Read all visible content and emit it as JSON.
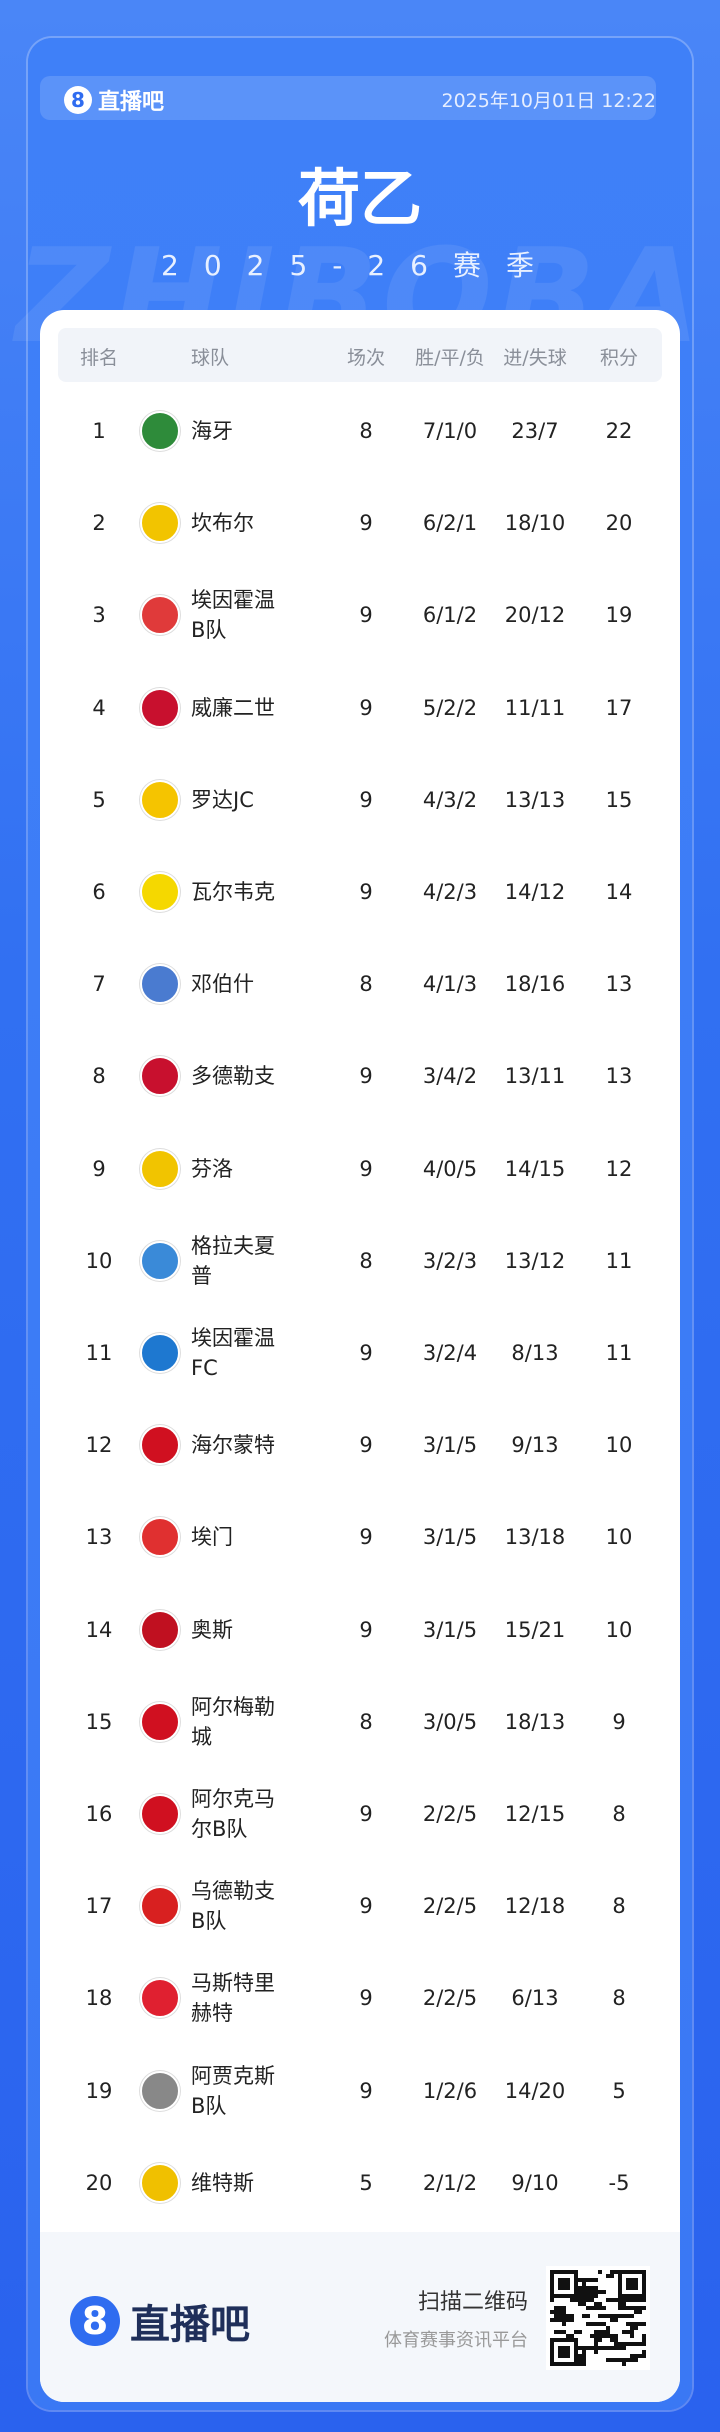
{
  "header": {
    "brand": "直播吧",
    "datetime": "2025年10月01日 12:22"
  },
  "title": "荷乙",
  "season": "2025-26赛季",
  "watermark": "ZHIBOBA",
  "table": {
    "columns": [
      "排名",
      "球队",
      "场次",
      "胜/平/负",
      "进/失球",
      "积分"
    ],
    "rows": [
      [
        1,
        "海牙",
        8,
        "7/1/0",
        "23/7",
        22
      ],
      [
        2,
        "坎布尔",
        9,
        "6/2/1",
        "18/10",
        20
      ],
      [
        3,
        "埃因霍温B队",
        9,
        "6/1/2",
        "20/12",
        19
      ],
      [
        4,
        "威廉二世",
        9,
        "5/2/2",
        "11/11",
        17
      ],
      [
        5,
        "罗达JC",
        9,
        "4/3/2",
        "13/13",
        15
      ],
      [
        6,
        "瓦尔韦克",
        9,
        "4/2/3",
        "14/12",
        14
      ],
      [
        7,
        "邓伯什",
        8,
        "4/1/3",
        "18/16",
        13
      ],
      [
        8,
        "多德勒支",
        9,
        "3/4/2",
        "13/11",
        13
      ],
      [
        9,
        "芬洛",
        9,
        "4/0/5",
        "14/15",
        12
      ],
      [
        10,
        "格拉夫夏普",
        8,
        "3/2/3",
        "13/12",
        11
      ],
      [
        11,
        "埃因霍温FC",
        9,
        "3/2/4",
        "8/13",
        11
      ],
      [
        12,
        "海尔蒙特",
        9,
        "3/1/5",
        "9/13",
        10
      ],
      [
        13,
        "埃门",
        9,
        "3/1/5",
        "13/18",
        10
      ],
      [
        14,
        "奥斯",
        9,
        "3/1/5",
        "15/21",
        10
      ],
      [
        15,
        "阿尔梅勒城",
        8,
        "3/0/5",
        "18/13",
        9
      ],
      [
        16,
        "阿尔克马尔B队",
        9,
        "2/2/5",
        "12/15",
        8
      ],
      [
        17,
        "乌德勒支B队",
        9,
        "2/2/5",
        "12/18",
        8
      ],
      [
        18,
        "马斯特里赫特",
        9,
        "2/2/5",
        "6/13",
        8
      ],
      [
        19,
        "阿贾克斯B队",
        9,
        "1/2/6",
        "14/20",
        5
      ],
      [
        20,
        "维特斯",
        5,
        "2/1/2",
        "9/10",
        -5
      ]
    ]
  },
  "footer": {
    "brand": "直播吧",
    "scan": "扫描二维码",
    "slogan": "体育赛事资讯平台"
  }
}
